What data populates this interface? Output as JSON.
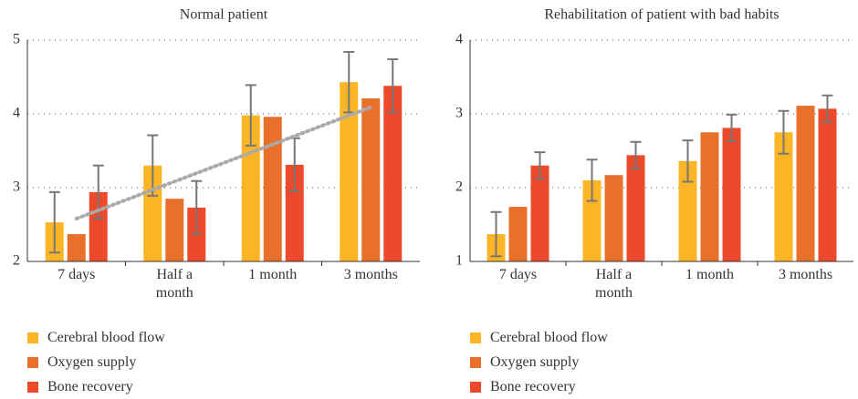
{
  "chart_data": [
    {
      "type": "bar",
      "title": "Normal patient",
      "categories": [
        "7 days",
        "Half a month",
        "1 month",
        "3 months"
      ],
      "series": [
        {
          "name": "Cerebral blood flow",
          "color": "#fbb526",
          "values": [
            2.53,
            3.3,
            3.98,
            4.43
          ],
          "errors": [
            0.41,
            0.41,
            0.41,
            0.41
          ]
        },
        {
          "name": "Oxygen supply",
          "color": "#e8702a",
          "values": [
            2.37,
            2.85,
            3.96,
            4.21
          ]
        },
        {
          "name": "Bone recovery",
          "color": "#ec4a2b",
          "values": [
            2.94,
            2.73,
            3.31,
            4.38
          ],
          "errors": [
            0.36,
            0.36,
            0.36,
            0.36
          ]
        }
      ],
      "trend": [
        2.58,
        4.09
      ],
      "ylim": [
        2,
        5
      ],
      "yticks": [
        2,
        3,
        4,
        5
      ],
      "grid": true
    },
    {
      "type": "bar",
      "title": "Rehabilitation of patient with bad habits",
      "categories": [
        "7 days",
        "Half a month",
        "1 month",
        "3 months"
      ],
      "series": [
        {
          "name": "Cerebral blood flow",
          "color": "#fbb526",
          "values": [
            1.37,
            2.1,
            2.36,
            2.75
          ],
          "errors": [
            0.3,
            0.28,
            0.28,
            0.29
          ]
        },
        {
          "name": "Oxygen supply",
          "color": "#e8702a",
          "values": [
            1.74,
            2.17,
            2.75,
            3.11
          ]
        },
        {
          "name": "Bone recovery",
          "color": "#ec4a2b",
          "values": [
            2.3,
            2.44,
            2.81,
            3.07
          ],
          "errors": [
            0.18,
            0.18,
            0.18,
            0.18
          ]
        }
      ],
      "ylim": [
        1,
        4
      ],
      "yticks": [
        1,
        2,
        3,
        4
      ],
      "grid": true
    }
  ]
}
